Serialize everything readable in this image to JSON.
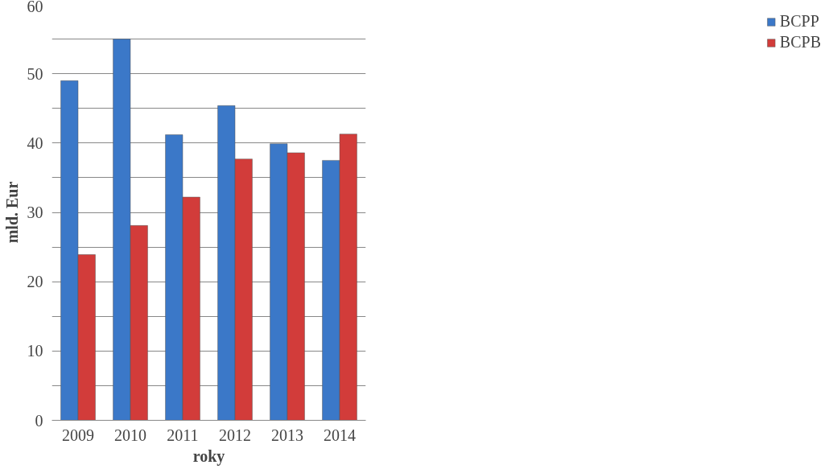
{
  "chart_data": {
    "type": "bar",
    "xlabel": "roky",
    "ylabel": "mld. Eur",
    "categories": [
      "2009",
      "2010",
      "2011",
      "2012",
      "2013",
      "2014"
    ],
    "series": [
      {
        "name": "BCPP",
        "color": "#3b78c8",
        "values": [
          49,
          55,
          41.2,
          45.4,
          39.9,
          37.5
        ]
      },
      {
        "name": "BCPB",
        "color": "#d23c3a",
        "values": [
          23.9,
          28.1,
          32.2,
          37.7,
          38.6,
          41.3
        ]
      }
    ],
    "ylim": [
      0,
      60
    ],
    "yticks": [
      0,
      {
        "value": 5,
        "label": null
      },
      10,
      {
        "value": 15,
        "label": null
      },
      20,
      {
        "value": 25,
        "label": null
      },
      30,
      {
        "value": 35,
        "label": null
      },
      40,
      {
        "value": 45,
        "label": null
      },
      50,
      {
        "value": 55,
        "label": null
      },
      60
    ],
    "grid": "y",
    "legend": "right"
  }
}
